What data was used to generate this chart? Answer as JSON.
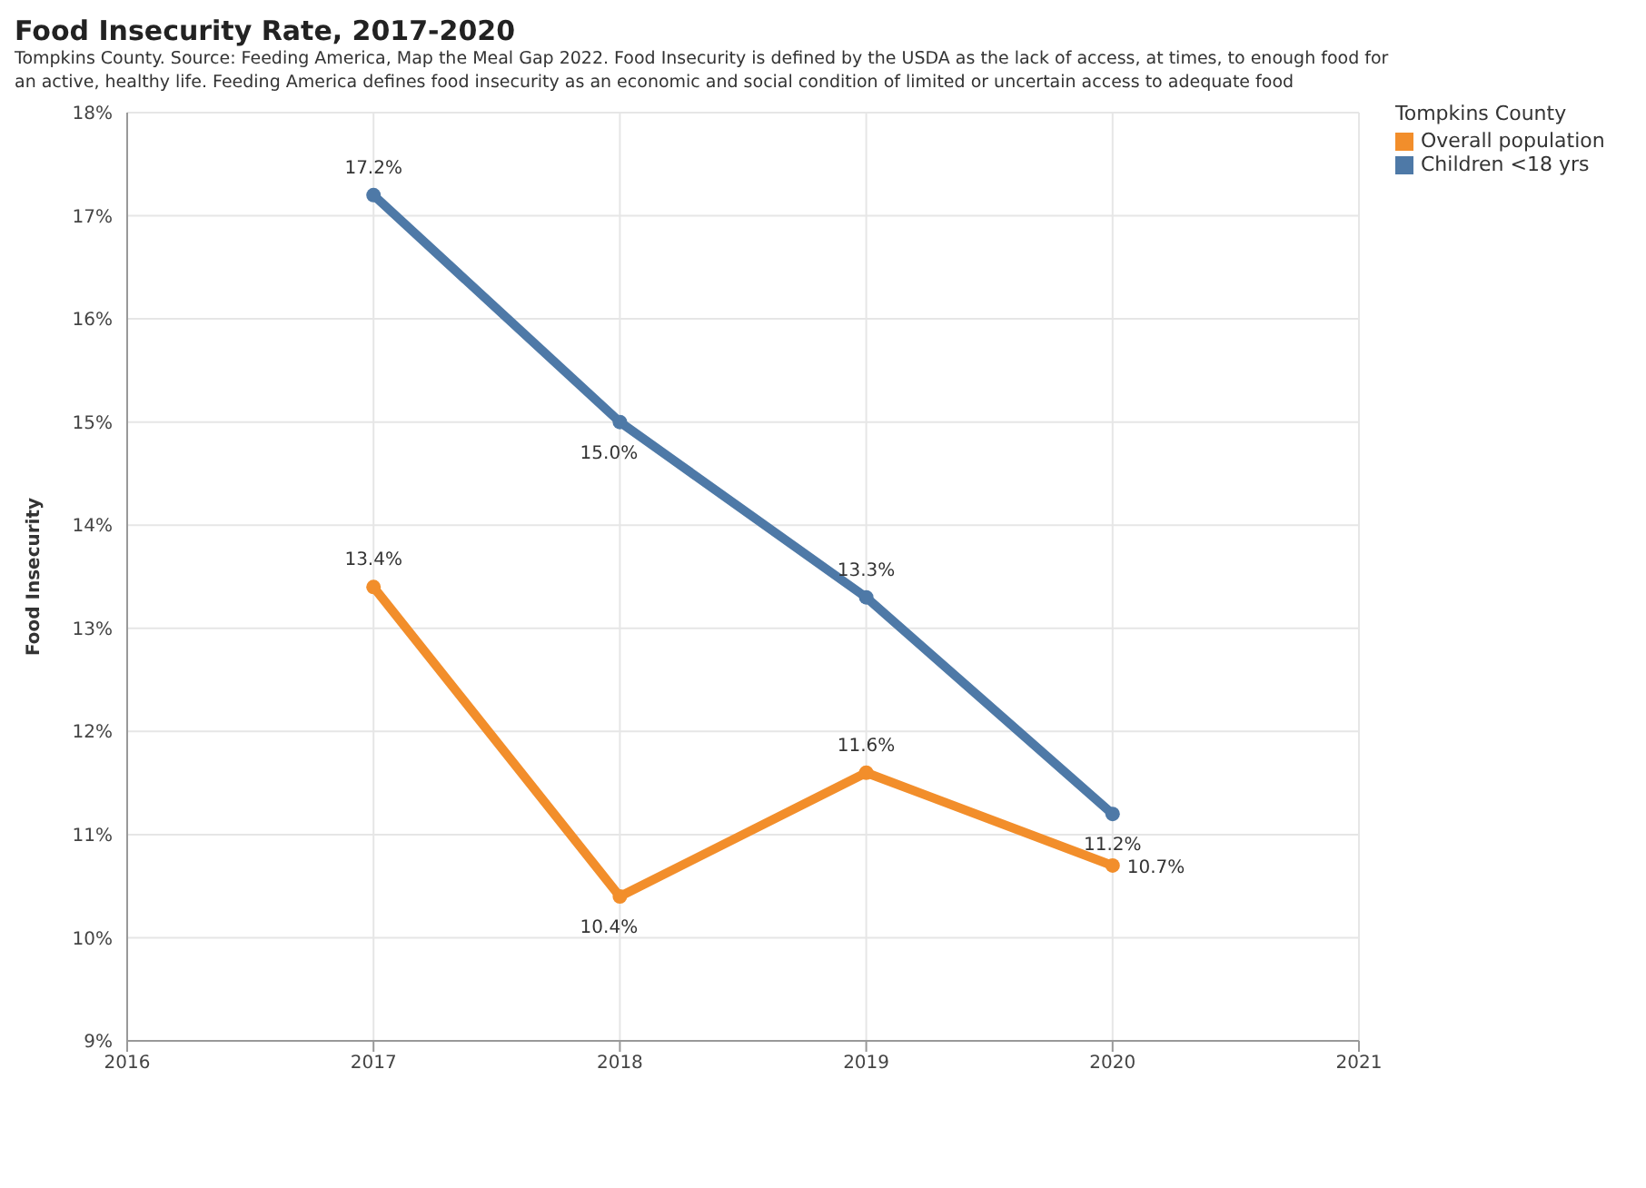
{
  "chart_data": {
    "type": "line",
    "title": "Food Insecurity Rate, 2017-2020",
    "subtitle": "Tompkins County. Source: Feeding America, Map the Meal Gap 2022. Food Insecurity is defined by the USDA as the lack of access, at times, to enough food for an active, healthy life. Feeding America defines food insecurity as an economic and social condition of limited or uncertain access to adequate food",
    "ylabel": "Food Insecurity",
    "legend_title": "Tompkins County",
    "legend": "right",
    "grid": true,
    "marker": "circle",
    "line_style": "solid",
    "x": [
      2017,
      2018,
      2019,
      2020
    ],
    "xlim": [
      2016,
      2021
    ],
    "xticks": [
      2016,
      2017,
      2018,
      2019,
      2020,
      2021
    ],
    "ylim": [
      9,
      18
    ],
    "yticks": [
      {
        "value": 9,
        "label": "9%"
      },
      {
        "value": 10,
        "label": "10%"
      },
      {
        "value": 11,
        "label": "11%"
      },
      {
        "value": 12,
        "label": "12%"
      },
      {
        "value": 13,
        "label": "13%"
      },
      {
        "value": 14,
        "label": "14%"
      },
      {
        "value": 15,
        "label": "15%"
      },
      {
        "value": 16,
        "label": "16%"
      },
      {
        "value": 17,
        "label": "17%"
      },
      {
        "value": 18,
        "label": "18%"
      }
    ],
    "series": [
      {
        "name": "Overall population",
        "color": "#f28e2b",
        "values": [
          13.4,
          10.4,
          11.6,
          10.7
        ],
        "value_labels": [
          "13.4%",
          "10.4%",
          "11.6%",
          "10.7%"
        ]
      },
      {
        "name": "Children <18 yrs",
        "color": "#4e79a7",
        "values": [
          17.2,
          15.0,
          13.3,
          11.2
        ],
        "value_labels": [
          "17.2%",
          "15.0%",
          "13.3%",
          "11.2%"
        ]
      }
    ]
  }
}
